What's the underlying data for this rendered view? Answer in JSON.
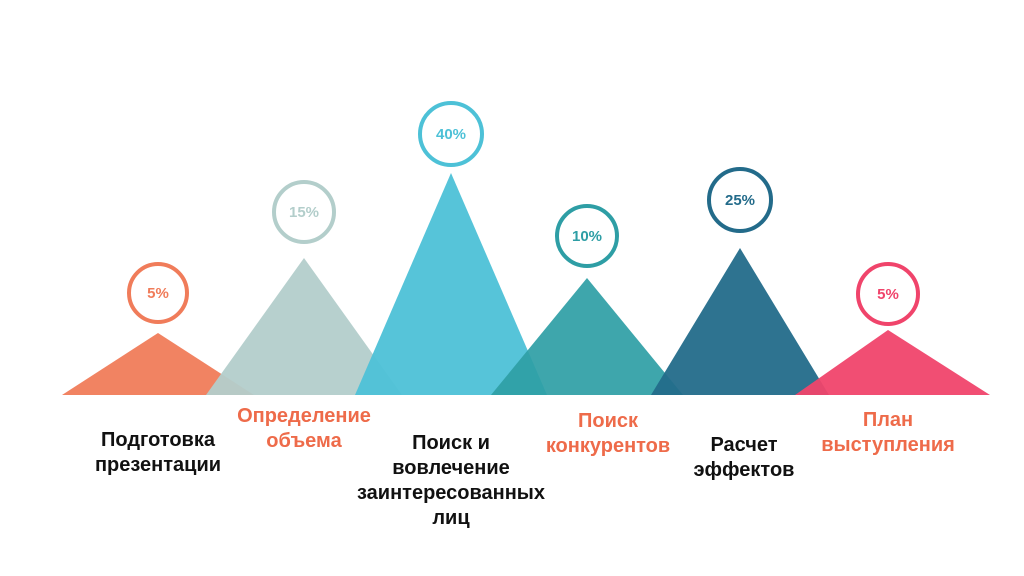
{
  "steps": [
    {
      "percent": "5%",
      "value": 5,
      "label_lines": [
        "Подготовка",
        "презентации"
      ],
      "color": "#F07C5A",
      "label_color": "#111111"
    },
    {
      "percent": "15%",
      "value": 15,
      "label_lines": [
        "Определение",
        "объема"
      ],
      "color": "#B3CECB",
      "label_color": "#EE6B4A"
    },
    {
      "percent": "40%",
      "value": 40,
      "label_lines": [
        "Поиск и",
        "вовлечение",
        "заинтересованных",
        "лиц"
      ],
      "color": "#4DC1D7",
      "label_color": "#111111"
    },
    {
      "percent": "10%",
      "value": 10,
      "label_lines": [
        "Поиск",
        "конкурентов"
      ],
      "color": "#2E9EA5",
      "label_color": "#EE6B4A"
    },
    {
      "percent": "25%",
      "value": 25,
      "label_lines": [
        "Расчет",
        "эффектов"
      ],
      "color": "#236B8A",
      "label_color": "#111111"
    },
    {
      "percent": "5%",
      "value": 5,
      "label_lines": [
        "План",
        "выступления"
      ],
      "color": "#F0446B",
      "label_color": "#EE6B4A"
    }
  ]
}
